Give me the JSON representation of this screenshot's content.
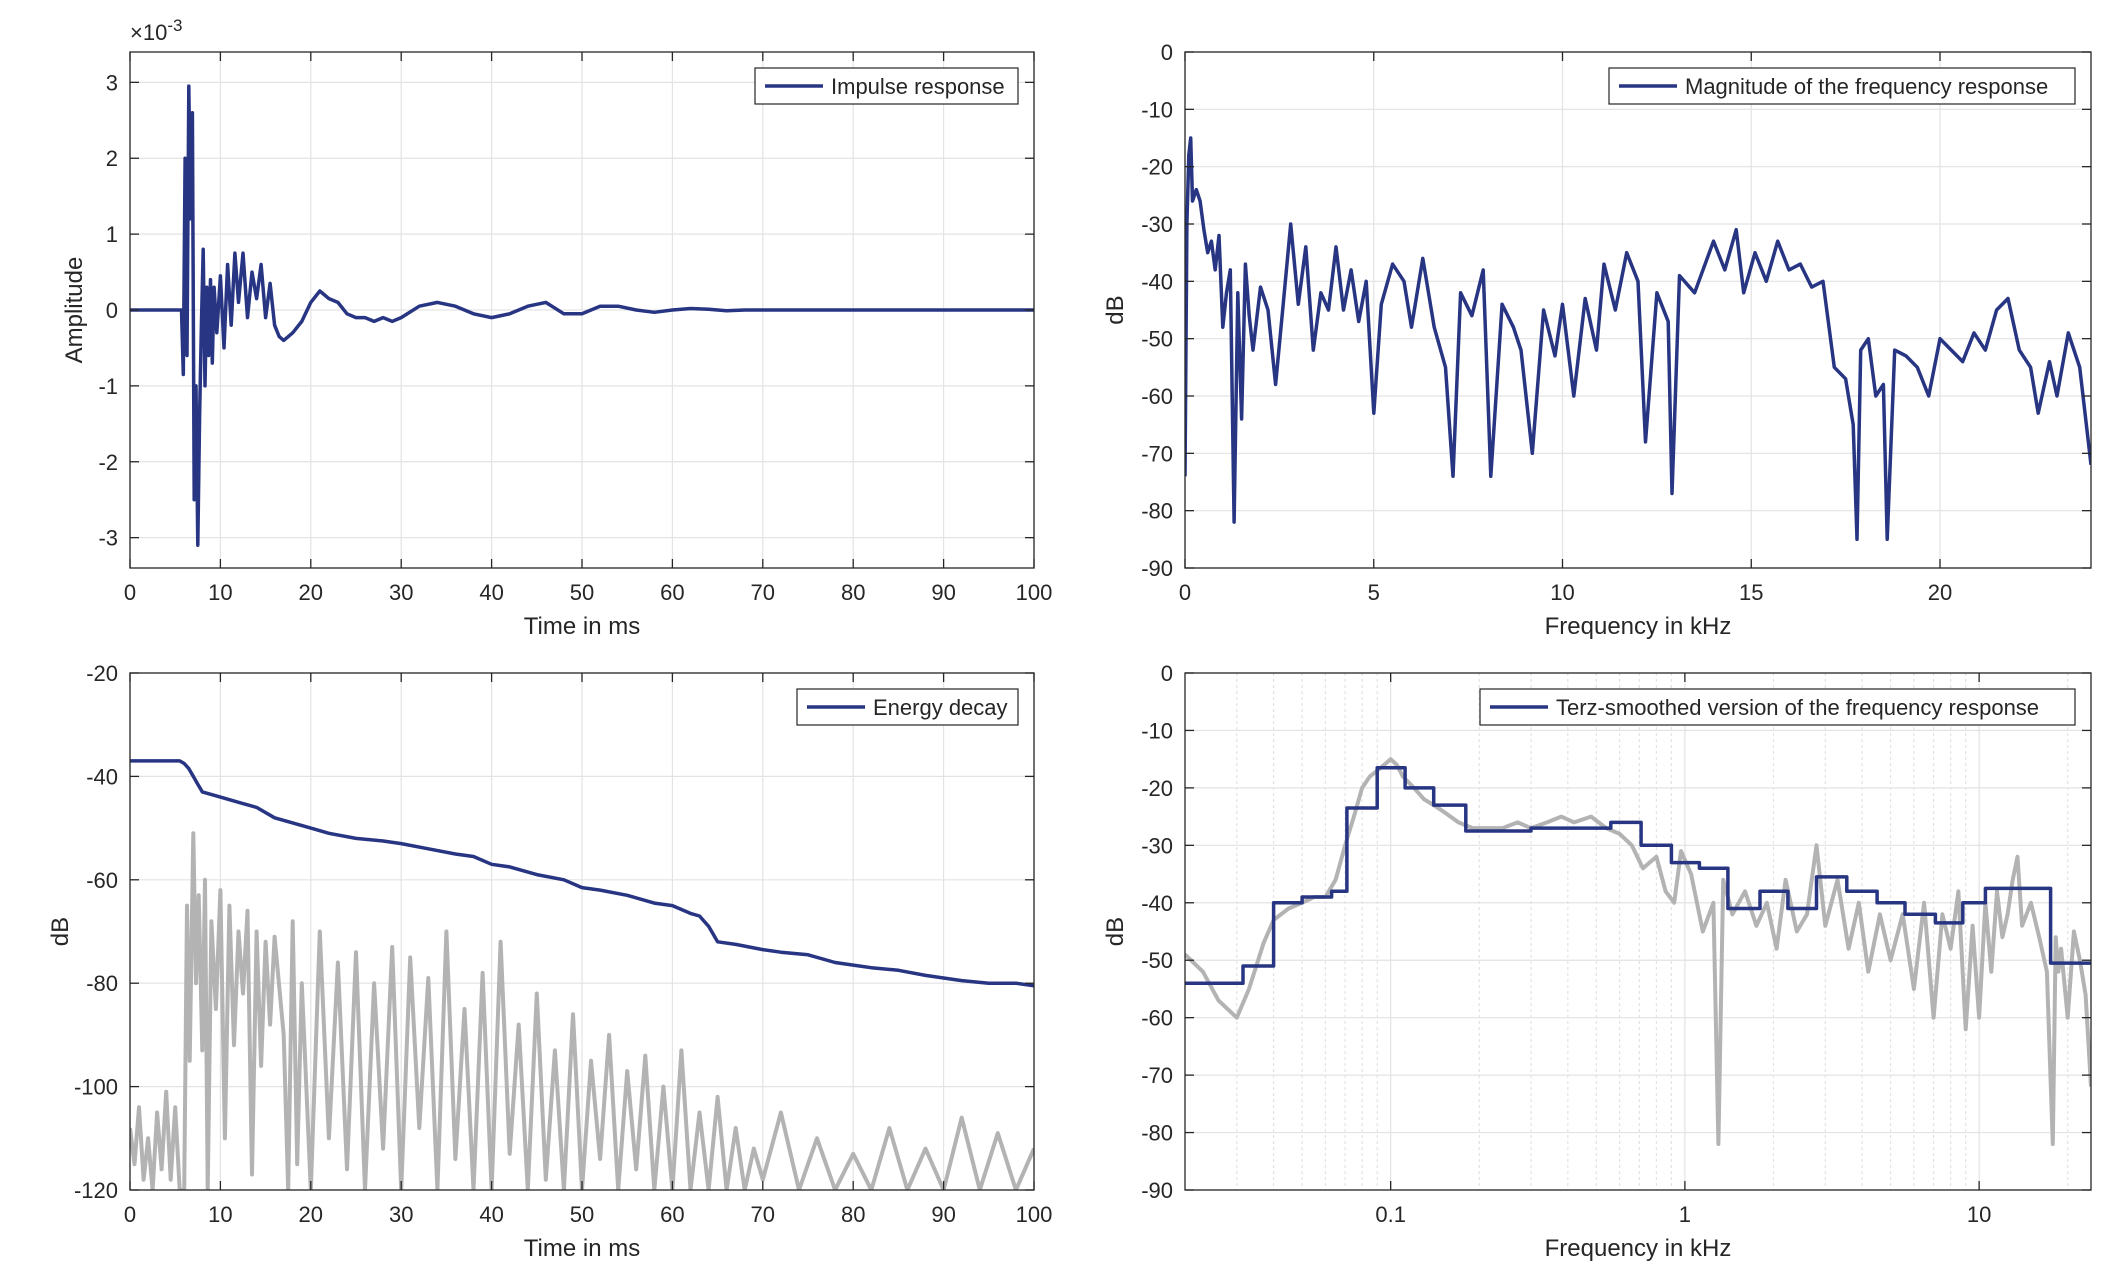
{
  "chart_data": [
    {
      "type": "line",
      "title": "",
      "xlabel": "Time in ms",
      "ylabel": "Amplitude",
      "multiplier": "×10",
      "multiplier_exp": "-3",
      "xlim": [
        0,
        100
      ],
      "ylim": [
        -3.4,
        3.4
      ],
      "xticks": [
        0,
        10,
        20,
        30,
        40,
        50,
        60,
        70,
        80,
        90,
        100
      ],
      "yticks": [
        -3,
        -2,
        -1,
        0,
        1,
        2,
        3
      ],
      "grid": true,
      "legend_placement": "top-right",
      "series": [
        {
          "name": "Impulse response",
          "color": "#283583",
          "x": [
            0,
            5.7,
            5.9,
            6.1,
            6.3,
            6.5,
            6.7,
            6.9,
            7.1,
            7.3,
            7.5,
            7.7,
            7.9,
            8.1,
            8.3,
            8.5,
            8.7,
            8.9,
            9.1,
            9.3,
            9.6,
            10,
            10.4,
            10.8,
            11.2,
            11.6,
            12,
            12.5,
            13,
            13.5,
            14,
            14.5,
            15,
            15.5,
            16,
            16.5,
            17,
            18,
            19,
            20,
            21,
            22,
            23,
            24,
            25,
            26,
            27,
            28,
            29,
            30,
            32,
            34,
            36,
            38,
            40,
            42,
            44,
            46,
            48,
            50,
            52,
            54,
            56,
            58,
            60,
            62,
            64,
            66,
            68,
            70,
            75,
            80,
            85,
            90,
            95,
            100
          ],
          "y": [
            0,
            0,
            -0.85,
            2.0,
            -0.6,
            2.95,
            1.2,
            2.6,
            -2.5,
            -1.0,
            -3.1,
            -1.4,
            -0.2,
            0.8,
            -1.0,
            0.3,
            -0.6,
            0.4,
            -0.7,
            0.3,
            -0.3,
            0.45,
            -0.5,
            0.6,
            -0.2,
            0.75,
            0.1,
            0.75,
            -0.1,
            0.5,
            0.15,
            0.6,
            -0.1,
            0.35,
            -0.2,
            -0.35,
            -0.4,
            -0.3,
            -0.15,
            0.1,
            0.25,
            0.15,
            0.1,
            -0.05,
            -0.1,
            -0.1,
            -0.15,
            -0.1,
            -0.15,
            -0.1,
            0.05,
            0.1,
            0.05,
            -0.05,
            -0.1,
            -0.05,
            0.05,
            0.1,
            -0.05,
            -0.05,
            0.05,
            0.05,
            0.0,
            -0.03,
            0.0,
            0.02,
            0.01,
            -0.01,
            0.0,
            0.0,
            0.0,
            0.0,
            0.0,
            0.0,
            0.0,
            0.0
          ]
        }
      ]
    },
    {
      "type": "line",
      "title": "",
      "xlabel": "Frequency in kHz",
      "ylabel": "dB",
      "xlim": [
        0,
        24
      ],
      "ylim": [
        -90,
        0
      ],
      "xticks": [
        0,
        5,
        10,
        15,
        20
      ],
      "yticks": [
        0,
        -10,
        -20,
        -30,
        -40,
        -50,
        -60,
        -70,
        -80,
        -90
      ],
      "grid": true,
      "legend_placement": "top-right",
      "series": [
        {
          "name": "Magnitude of the frequency response",
          "color": "#283583",
          "x": [
            0,
            0.05,
            0.1,
            0.15,
            0.2,
            0.3,
            0.4,
            0.5,
            0.6,
            0.7,
            0.8,
            0.9,
            1.0,
            1.1,
            1.2,
            1.3,
            1.4,
            1.5,
            1.6,
            1.7,
            1.8,
            2.0,
            2.2,
            2.4,
            2.6,
            2.8,
            3.0,
            3.2,
            3.4,
            3.6,
            3.8,
            4.0,
            4.2,
            4.4,
            4.6,
            4.8,
            5.0,
            5.2,
            5.5,
            5.8,
            6.0,
            6.3,
            6.6,
            6.9,
            7.1,
            7.3,
            7.6,
            7.9,
            8.1,
            8.4,
            8.7,
            8.9,
            9.2,
            9.5,
            9.8,
            10.0,
            10.3,
            10.6,
            10.9,
            11.1,
            11.4,
            11.7,
            12.0,
            12.2,
            12.5,
            12.8,
            12.9,
            13.1,
            13.5,
            14.0,
            14.3,
            14.6,
            14.8,
            15.1,
            15.4,
            15.7,
            16.0,
            16.3,
            16.6,
            16.9,
            17.2,
            17.5,
            17.7,
            17.8,
            17.9,
            18.1,
            18.3,
            18.5,
            18.6,
            18.8,
            19.1,
            19.4,
            19.7,
            20.0,
            20.3,
            20.6,
            20.9,
            21.2,
            21.5,
            21.8,
            22.1,
            22.4,
            22.6,
            22.9,
            23.1,
            23.4,
            23.7,
            24.0
          ],
          "y": [
            -74,
            -30,
            -18,
            -15,
            -26,
            -24,
            -26,
            -31,
            -35,
            -33,
            -38,
            -32,
            -48,
            -42,
            -38,
            -82,
            -42,
            -64,
            -37,
            -46,
            -52,
            -41,
            -45,
            -58,
            -44,
            -30,
            -44,
            -34,
            -52,
            -42,
            -45,
            -34,
            -45,
            -38,
            -47,
            -40,
            -63,
            -44,
            -37,
            -40,
            -48,
            -36,
            -48,
            -55,
            -74,
            -42,
            -46,
            -38,
            -74,
            -44,
            -48,
            -52,
            -70,
            -45,
            -53,
            -44,
            -60,
            -43,
            -52,
            -37,
            -45,
            -35,
            -40,
            -68,
            -42,
            -47,
            -77,
            -39,
            -42,
            -33,
            -38,
            -31,
            -42,
            -35,
            -40,
            -33,
            -38,
            -37,
            -41,
            -40,
            -55,
            -57,
            -65,
            -85,
            -52,
            -50,
            -60,
            -58,
            -85,
            -52,
            -53,
            -55,
            -60,
            -50,
            -52,
            -54,
            -49,
            -52,
            -45,
            -43,
            -52,
            -55,
            -63,
            -54,
            -60,
            -49,
            -55,
            -72
          ]
        }
      ]
    },
    {
      "type": "line",
      "title": "",
      "xlabel": "Time in ms",
      "ylabel": "dB",
      "xlim": [
        0,
        100
      ],
      "ylim": [
        -120,
        -20
      ],
      "xticks": [
        0,
        10,
        20,
        30,
        40,
        50,
        60,
        70,
        80,
        90,
        100
      ],
      "yticks": [
        -20,
        -40,
        -60,
        -80,
        -100,
        -120
      ],
      "grid": true,
      "legend_placement": "top-right",
      "series": [
        {
          "name": "Energy decay",
          "color": "#283583",
          "x": [
            0,
            3,
            5.5,
            6,
            6.5,
            7,
            7.5,
            8,
            10,
            12,
            14,
            16,
            18,
            20,
            22,
            25,
            28,
            30,
            33,
            36,
            38,
            40,
            42,
            45,
            48,
            50,
            52,
            55,
            58,
            60,
            62,
            63,
            64,
            65,
            67,
            70,
            72,
            75,
            78,
            80,
            82,
            85,
            88,
            90,
            92,
            95,
            98,
            100
          ],
          "y": [
            -37,
            -37,
            -37,
            -37.5,
            -38.5,
            -40,
            -41.5,
            -43,
            -44,
            -45,
            -46,
            -48,
            -49,
            -50,
            -51,
            -52,
            -52.5,
            -53,
            -54,
            -55,
            -55.5,
            -57,
            -57.5,
            -59,
            -60,
            -61.5,
            -62,
            -63,
            -64.5,
            -65,
            -66.5,
            -67,
            -69,
            -72,
            -72.5,
            -73.5,
            -74,
            -74.5,
            -76,
            -76.5,
            -77,
            -77.5,
            -78.5,
            -79,
            -79.5,
            -80,
            -80,
            -80.5
          ]
        },
        {
          "name": "",
          "color": "#b3b3b3",
          "x": [
            0,
            0.5,
            1,
            1.5,
            2,
            2.5,
            3,
            3.5,
            4,
            4.5,
            5,
            5.5,
            6,
            6.3,
            6.6,
            7,
            7.3,
            7.6,
            8,
            8.3,
            8.6,
            9,
            9.5,
            10,
            10.5,
            11,
            11.5,
            12,
            12.5,
            13,
            13.5,
            14,
            14.5,
            15,
            15.5,
            16,
            17,
            17.5,
            18,
            18.5,
            19,
            20,
            21,
            22,
            23,
            24,
            25,
            26,
            27,
            28,
            29,
            30,
            31,
            32,
            33,
            34,
            35,
            36,
            37,
            38,
            39,
            40,
            41,
            42,
            43,
            44,
            45,
            46,
            47,
            48,
            49,
            50,
            51,
            52,
            53,
            54,
            55,
            56,
            57,
            58,
            59,
            60,
            61,
            62,
            63,
            64,
            65,
            66,
            67,
            68,
            69,
            70,
            72,
            74,
            76,
            78,
            80,
            82,
            84,
            86,
            88,
            90,
            92,
            94,
            96,
            98,
            100
          ],
          "y": [
            -108,
            -115,
            -104,
            -118,
            -110,
            -120,
            -105,
            -116,
            -101,
            -118,
            -104,
            -120,
            -120,
            -65,
            -95,
            -51,
            -80,
            -63,
            -93,
            -60,
            -120,
            -68,
            -85,
            -62,
            -110,
            -65,
            -92,
            -70,
            -82,
            -66,
            -117,
            -70,
            -96,
            -72,
            -88,
            -71,
            -90,
            -120,
            -68,
            -115,
            -80,
            -120,
            -70,
            -110,
            -76,
            -116,
            -74,
            -120,
            -80,
            -112,
            -73,
            -120,
            -75,
            -108,
            -79,
            -120,
            -70,
            -114,
            -85,
            -120,
            -78,
            -120,
            -72,
            -113,
            -88,
            -120,
            -82,
            -118,
            -93,
            -120,
            -86,
            -120,
            -95,
            -114,
            -90,
            -120,
            -97,
            -116,
            -94,
            -120,
            -100,
            -120,
            -93,
            -120,
            -105,
            -120,
            -102,
            -120,
            -108,
            -120,
            -112,
            -118,
            -105,
            -120,
            -110,
            -120,
            -113,
            -120,
            -108,
            -120,
            -112,
            -120,
            -106,
            -120,
            -109,
            -120,
            -112
          ]
        }
      ]
    },
    {
      "type": "line",
      "title": "",
      "xlabel": "Frequency in kHz",
      "ylabel": "dB",
      "xscale": "log",
      "xlim": [
        0.02,
        24
      ],
      "ylim": [
        -90,
        0
      ],
      "xticks": [
        0.1,
        1,
        10
      ],
      "xticklabels": [
        "0.1",
        "1",
        "10"
      ],
      "yticks": [
        0,
        -10,
        -20,
        -30,
        -40,
        -50,
        -60,
        -70,
        -80,
        -90
      ],
      "grid": true,
      "legend_placement": "top-right",
      "series": [
        {
          "name": "Terz-smoothed version of the frequency response",
          "color": "#283583",
          "x": [
            0.02,
            0.0315,
            0.0315,
            0.04,
            0.04,
            0.05,
            0.05,
            0.063,
            0.063,
            0.071,
            0.071,
            0.09,
            0.09,
            0.112,
            0.112,
            0.14,
            0.14,
            0.18,
            0.18,
            0.3,
            0.3,
            0.56,
            0.56,
            0.71,
            0.71,
            0.9,
            0.9,
            1.12,
            1.12,
            1.4,
            1.4,
            1.8,
            1.8,
            2.24,
            2.24,
            2.8,
            2.8,
            3.55,
            3.55,
            4.5,
            4.5,
            5.6,
            5.6,
            7.1,
            7.1,
            8.8,
            8.8,
            10.5,
            10.5,
            17.5,
            17.5,
            24
          ],
          "y": [
            -54,
            -54,
            -51,
            -51,
            -40,
            -40,
            -39,
            -39,
            -38,
            -38,
            -23.5,
            -23.5,
            -16.5,
            -16.5,
            -20,
            -20,
            -23,
            -23,
            -27.5,
            -27.5,
            -27,
            -27,
            -26,
            -26,
            -30,
            -30,
            -33,
            -33,
            -34,
            -34,
            -41,
            -41,
            -38,
            -38,
            -41,
            -41,
            -35.5,
            -35.5,
            -38,
            -38,
            -40,
            -40,
            -42,
            -42,
            -43.5,
            -43.5,
            -40,
            -40,
            -37.5,
            -37.5,
            -50.5,
            -50.5
          ]
        },
        {
          "name": "",
          "color": "#b3b3b3",
          "x": [
            0.02,
            0.023,
            0.026,
            0.03,
            0.033,
            0.037,
            0.04,
            0.045,
            0.05,
            0.055,
            0.06,
            0.065,
            0.07,
            0.075,
            0.08,
            0.085,
            0.09,
            0.095,
            0.1,
            0.105,
            0.11,
            0.12,
            0.13,
            0.14,
            0.15,
            0.17,
            0.19,
            0.21,
            0.24,
            0.27,
            0.3,
            0.34,
            0.38,
            0.42,
            0.48,
            0.54,
            0.6,
            0.66,
            0.72,
            0.8,
            0.86,
            0.92,
            0.97,
            1.05,
            1.15,
            1.25,
            1.3,
            1.35,
            1.45,
            1.6,
            1.75,
            1.9,
            2.05,
            2.2,
            2.4,
            2.6,
            2.8,
            3.0,
            3.3,
            3.6,
            3.9,
            4.2,
            4.6,
            5.0,
            5.5,
            6.0,
            6.5,
            7.0,
            7.5,
            8.0,
            8.5,
            9.0,
            9.5,
            10,
            10.5,
            11,
            11.5,
            12,
            12.5,
            13,
            13.5,
            14,
            15,
            16,
            17,
            17.8,
            18.2,
            18.6,
            19,
            20,
            21,
            22,
            23,
            24
          ],
          "y": [
            -49,
            -52,
            -57,
            -60,
            -55,
            -47,
            -43,
            -41,
            -40,
            -39,
            -39,
            -36,
            -30,
            -25,
            -20,
            -18,
            -17,
            -16,
            -15,
            -16,
            -18,
            -20,
            -22,
            -23,
            -24,
            -26,
            -27,
            -27,
            -27,
            -26,
            -27,
            -26,
            -25,
            -26,
            -25,
            -27,
            -28,
            -30,
            -34,
            -32,
            -38,
            -40,
            -31,
            -35,
            -45,
            -40,
            -82,
            -36,
            -42,
            -38,
            -44,
            -40,
            -48,
            -36,
            -45,
            -42,
            -30,
            -44,
            -36,
            -48,
            -40,
            -52,
            -42,
            -50,
            -42,
            -55,
            -40,
            -60,
            -42,
            -48,
            -38,
            -62,
            -44,
            -60,
            -40,
            -52,
            -38,
            -46,
            -42,
            -36,
            -32,
            -44,
            -40,
            -46,
            -52,
            -82,
            -46,
            -52,
            -48,
            -60,
            -45,
            -50,
            -56,
            -72
          ]
        }
      ]
    }
  ]
}
